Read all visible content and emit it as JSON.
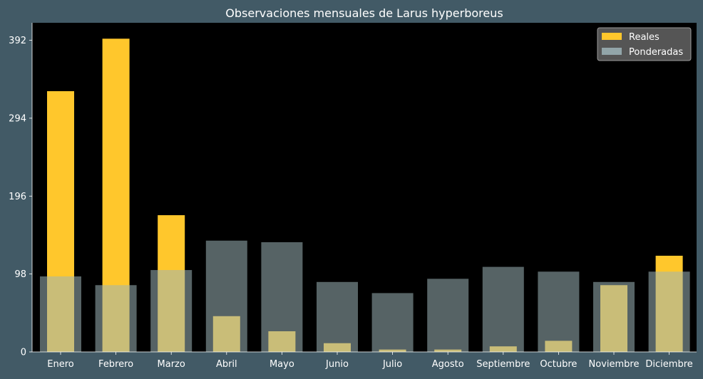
{
  "chart_data": {
    "type": "bar",
    "title": "Observaciones mensuales de Larus hyperboreus",
    "xlabel": "",
    "ylabel": "",
    "categories": [
      "Enero",
      "Febrero",
      "Marzo",
      "Abril",
      "Mayo",
      "Junio",
      "Julio",
      "Agosto",
      "Septiembre",
      "Octubre",
      "Noviembre",
      "Diciembre"
    ],
    "series": [
      {
        "name": "Reales",
        "color": "#ffc72c",
        "values": [
          328,
          394,
          172,
          45,
          26,
          11,
          3,
          3,
          7,
          14,
          84,
          121
        ]
      },
      {
        "name": "Ponderadas",
        "color": "#9db4b8",
        "values": [
          95,
          84,
          103,
          140,
          138,
          88,
          74,
          92,
          107,
          101,
          88,
          101
        ]
      }
    ],
    "yticks": [
      0,
      98,
      196,
      294,
      392
    ],
    "ylim": [
      0,
      414
    ],
    "grid": false,
    "legend": "top-right",
    "colors": {
      "background": "#425a66",
      "plot_background": "#000000",
      "text": "#ffffff"
    }
  }
}
